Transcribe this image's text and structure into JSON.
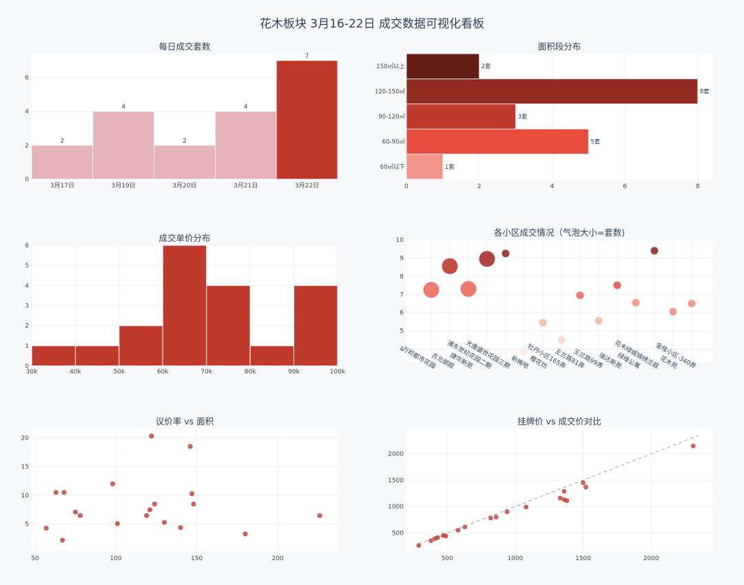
{
  "page_title": "花木板块 3月16-22日 成交数据可视化看板",
  "colors": {
    "plot_bg": "#ffffff",
    "page_bg": "#f8f9fa",
    "grid": "#ebf0f8",
    "text": "#2a3f5f",
    "tick": "#444444",
    "red_dark": "#6b1e17",
    "red_mid": "#922b21",
    "red": "#c0392b",
    "red_light": "#e74c3c",
    "red_pale": "#f1948a",
    "pink": "#e6b4b8"
  },
  "chart_data": [
    {
      "id": "daily",
      "type": "bar",
      "title": "每日成交套数",
      "categories": [
        "3月17日",
        "3月19日",
        "3月20日",
        "3月21日",
        "3月22日"
      ],
      "values": [
        2,
        4,
        2,
        4,
        7
      ],
      "value_labels": [
        "2",
        "4",
        "2",
        "4",
        "7"
      ],
      "highlight_index": 4,
      "ylim": [
        0,
        7.4
      ],
      "yticks": [
        0,
        2,
        4,
        6
      ],
      "ytick_labels": [
        "0",
        "2",
        "4",
        "6"
      ]
    },
    {
      "id": "area",
      "type": "bar",
      "orientation": "horizontal",
      "title": "面积段分布",
      "categories": [
        "60㎡以下",
        "60-90㎡",
        "90-120㎡",
        "120-150㎡",
        "150㎡以上"
      ],
      "values": [
        1,
        5,
        3,
        8,
        2
      ],
      "value_labels": [
        "1套",
        "5套",
        "3套",
        "8套",
        "2套"
      ],
      "bar_colors": [
        "#f1948a",
        "#e74c3c",
        "#c0392b",
        "#922b21",
        "#641e16"
      ],
      "xlim": [
        0,
        8.4
      ],
      "xticks": [
        0,
        2,
        4,
        6,
        8
      ],
      "xtick_labels": [
        "0",
        "2",
        "4",
        "6",
        "8"
      ]
    },
    {
      "id": "price",
      "type": "bar",
      "subtype": "histogram",
      "title": "成交单价分布",
      "bins": [
        [
          30,
          40
        ],
        [
          40,
          50
        ],
        [
          50,
          60
        ],
        [
          60,
          70
        ],
        [
          70,
          80
        ],
        [
          80,
          90
        ],
        [
          90,
          100
        ]
      ],
      "values": [
        1,
        1,
        2,
        6,
        4,
        1,
        4
      ],
      "xlim": [
        30,
        100
      ],
      "xticks": [
        30,
        40,
        50,
        60,
        70,
        80,
        90,
        100
      ],
      "xtick_labels": [
        "30k",
        "40k",
        "50k",
        "60k",
        "70k",
        "80k",
        "90k",
        "100k"
      ],
      "ylim": [
        0,
        6
      ],
      "yticks": [
        0,
        1,
        2,
        3,
        4,
        5,
        6
      ],
      "ytick_labels": [
        "0",
        "1",
        "2",
        "3",
        "4",
        "5",
        "6"
      ]
    },
    {
      "id": "bubble",
      "type": "scatter",
      "subtype": "bubble",
      "title": "各小区成交情况（气泡大小=套数)",
      "categories": [
        "万邦都市花园",
        "古北御庭",
        "捷华新苑",
        "浦东世纪花园二期",
        "大唐盛世花园三期",
        "新梅地",
        "樱花坊",
        "牡丹小区165弄",
        "王兰路81弄",
        "王兰路99弄",
        "瑞达新苑",
        "绿缘公寓",
        "花木绿城锦绣兰庭",
        "花木苑",
        "金桂小区-340弄"
      ],
      "points": [
        {
          "x": 0,
          "y": 7.25,
          "count": 3,
          "color": "#ec6b5e"
        },
        {
          "x": 1,
          "y": 8.55,
          "count": 3,
          "color": "#c0392b"
        },
        {
          "x": 2,
          "y": 7.3,
          "count": 3,
          "color": "#ec6b5e"
        },
        {
          "x": 3,
          "y": 8.95,
          "count": 3,
          "color": "#a82e2a"
        },
        {
          "x": 4,
          "y": 9.25,
          "count": 1,
          "color": "#922b21"
        },
        {
          "x": 5,
          "y": 3.85,
          "count": 1,
          "color": "#fde8e4"
        },
        {
          "x": 6,
          "y": 5.45,
          "count": 1,
          "color": "#f7b9a7"
        },
        {
          "x": 7,
          "y": 4.5,
          "count": 1,
          "color": "#fbd7cb"
        },
        {
          "x": 8,
          "y": 6.95,
          "count": 1,
          "color": "#ec6b5e"
        },
        {
          "x": 9,
          "y": 5.55,
          "count": 1,
          "color": "#f7b9a7"
        },
        {
          "x": 10,
          "y": 7.5,
          "count": 1,
          "color": "#e4574a"
        },
        {
          "x": 11,
          "y": 6.55,
          "count": 1,
          "color": "#f29580"
        },
        {
          "x": 12,
          "y": 9.4,
          "count": 1,
          "color": "#922b21"
        },
        {
          "x": 13,
          "y": 6.05,
          "count": 1,
          "color": "#f29580"
        },
        {
          "x": 14,
          "y": 6.5,
          "count": 1,
          "color": "#f29580"
        }
      ],
      "ylim": [
        3.3,
        10
      ],
      "yticks": [
        4,
        5,
        6,
        7,
        8,
        9,
        10
      ],
      "ytick_labels": [
        "4",
        "5",
        "6",
        "7",
        "8",
        "9",
        "10"
      ]
    },
    {
      "id": "bargain",
      "type": "scatter",
      "title": "议价率 vs 面积",
      "x": [
        57,
        63,
        67,
        68,
        75,
        78,
        98,
        101,
        119,
        121,
        122,
        124,
        130,
        140,
        146,
        147,
        148,
        180,
        226
      ],
      "y": [
        4.3,
        10.5,
        2.2,
        10.5,
        7.1,
        6.5,
        12.0,
        5.1,
        6.5,
        7.5,
        20.3,
        8.5,
        5.3,
        4.4,
        18.5,
        10.3,
        8.5,
        3.3,
        6.5
      ],
      "xlim": [
        48,
        237
      ],
      "ylim": [
        0.3,
        21.6
      ],
      "xticks": [
        50,
        100,
        150,
        200
      ],
      "xtick_labels": [
        "50",
        "100",
        "150",
        "200"
      ],
      "yticks": [
        5,
        10,
        15,
        20
      ],
      "ytick_labels": [
        "5",
        "10",
        "15",
        "20"
      ]
    },
    {
      "id": "listing",
      "type": "scatter",
      "title": "挂牌价 vs 成交价对比",
      "x": [
        290,
        380,
        410,
        430,
        470,
        490,
        580,
        630,
        820,
        860,
        940,
        1080,
        1330,
        1360,
        1360,
        1380,
        1500,
        1520,
        2310
      ],
      "y": [
        260,
        350,
        390,
        410,
        450,
        440,
        550,
        610,
        780,
        800,
        900,
        990,
        1160,
        1290,
        1130,
        1110,
        1450,
        1370,
        2150
      ],
      "reference_line": {
        "from": 290,
        "to": 2350
      },
      "xlim": [
        200,
        2450
      ],
      "ylim": [
        150,
        2480
      ],
      "xticks": [
        500,
        1000,
        1500,
        2000
      ],
      "xtick_labels": [
        "500",
        "1000",
        "1500",
        "2000"
      ],
      "yticks": [
        500,
        1000,
        1500,
        2000
      ],
      "ytick_labels": [
        "500",
        "1000",
        "1500",
        "2000"
      ]
    }
  ]
}
